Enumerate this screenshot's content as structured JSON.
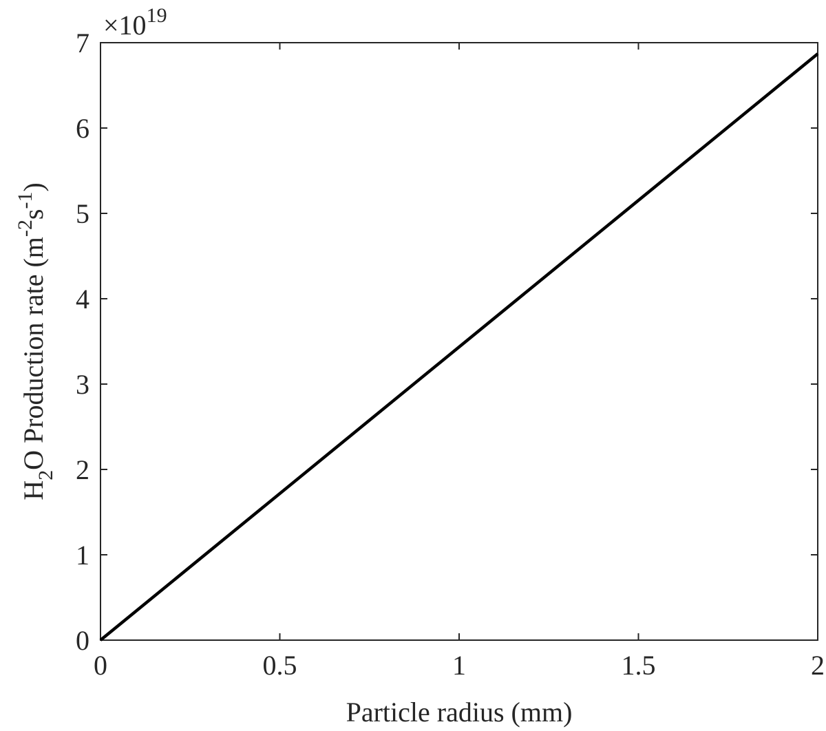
{
  "chart_data": {
    "type": "line",
    "xlabel": "Particle radius (mm)",
    "ylabel": {
      "pre": "H",
      "sub": "2",
      "mid": "O Production rate (m",
      "sup1": "-2",
      "s": "s",
      "sup2": "-1",
      "post": ")"
    },
    "y_exponent": {
      "prefix": "×10",
      "power": "19"
    },
    "xlim": [
      0,
      2
    ],
    "ylim": [
      0,
      7
    ],
    "x_ticks": [
      0,
      0.5,
      1,
      1.5,
      2
    ],
    "x_tick_labels": [
      "0",
      "0.5",
      "1",
      "1.5",
      "2"
    ],
    "y_ticks": [
      0,
      1,
      2,
      3,
      4,
      5,
      6,
      7
    ],
    "y_tick_labels": [
      "0",
      "1",
      "2",
      "3",
      "4",
      "5",
      "6",
      "7"
    ],
    "grid": false,
    "series": [
      {
        "color": "#000000",
        "x": [
          0,
          2
        ],
        "y": [
          0,
          6.87
        ]
      }
    ]
  }
}
